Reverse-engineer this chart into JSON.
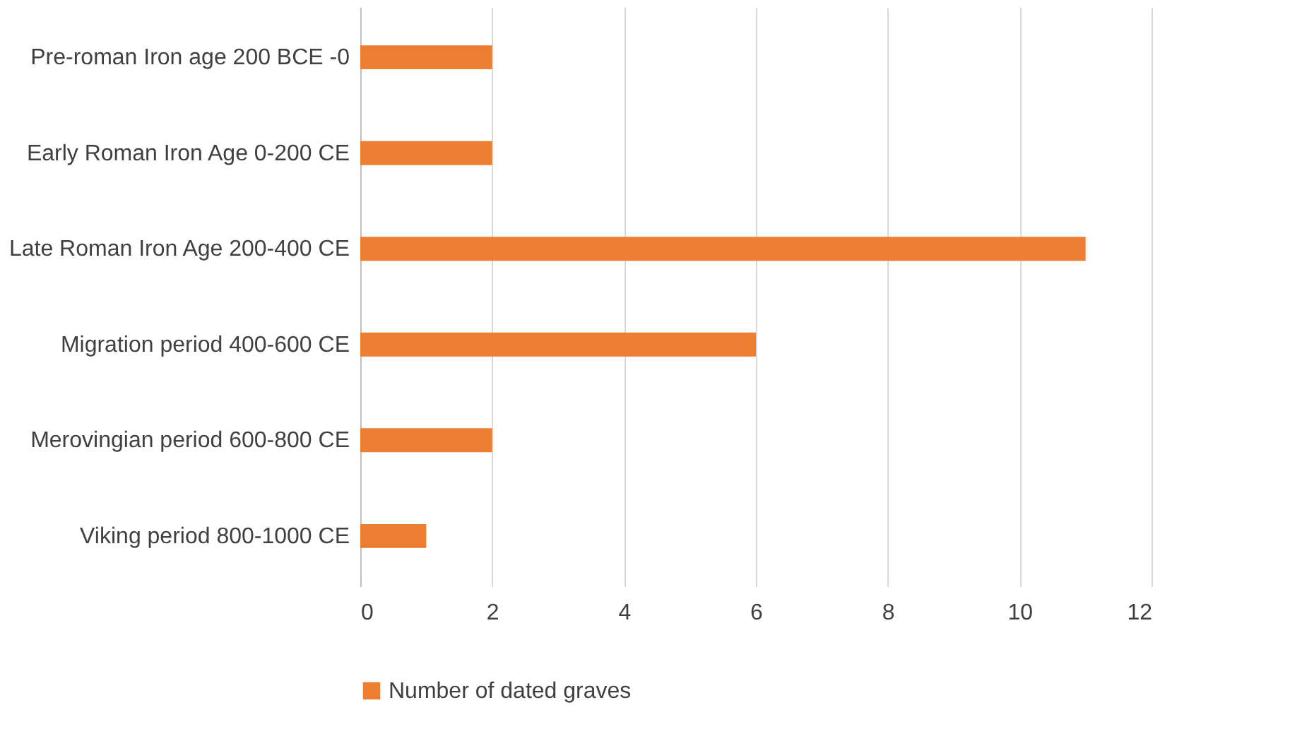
{
  "chart_data": {
    "type": "bar",
    "orientation": "horizontal",
    "categories": [
      "Pre-roman Iron age 200 BCE -0",
      "Early Roman Iron Age 0-200 CE",
      "Late Roman Iron Age 200-400 CE",
      "Migration period 400-600 CE",
      "Merovingian period 600-800 CE",
      "Viking period 800-1000 CE"
    ],
    "series": [
      {
        "name": "Number of dated graves",
        "color": "#ed7d31",
        "values": [
          2,
          2,
          11,
          6,
          2,
          1
        ]
      }
    ],
    "xlim": [
      0,
      12
    ],
    "xticks": [
      0,
      2,
      4,
      6,
      8,
      10,
      12
    ],
    "grid": "x",
    "legend": "bottom"
  }
}
